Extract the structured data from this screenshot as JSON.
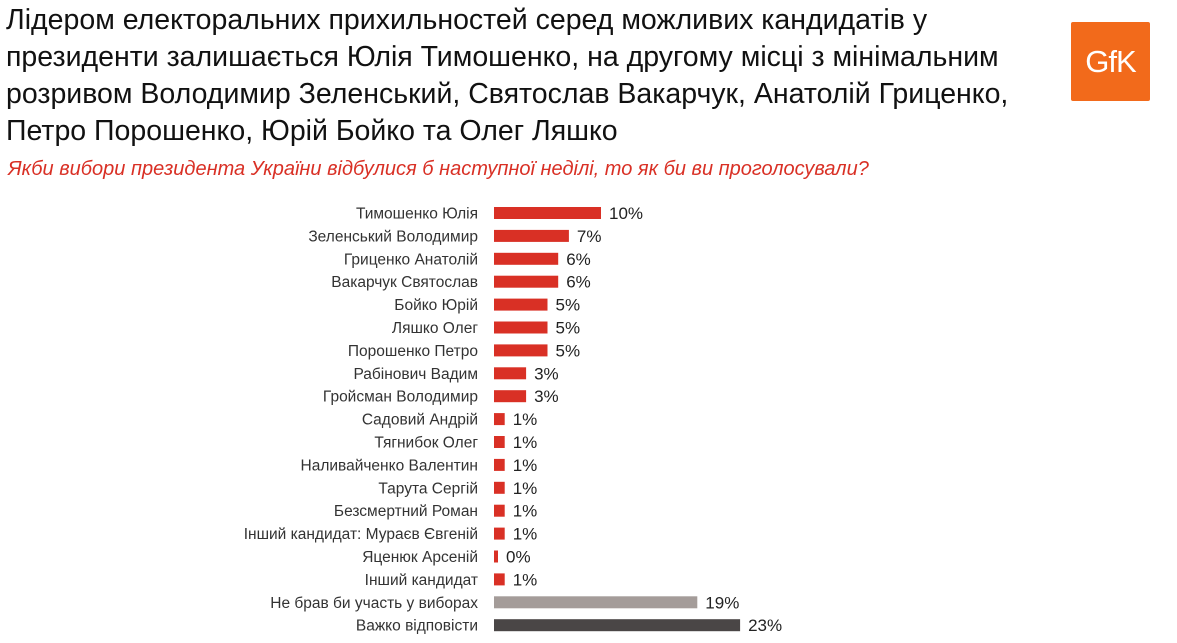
{
  "headline": "Лідером електоральних прихильностей серед можливих кандидатів у президенти залишається Юлія Тимошенко, на другому місці з мінімальним розривом Володимир Зеленський, Святослав Вакарчук, Анатолій Гриценко, Петро Порошенко, Юрій Бойко та Олег Ляшко",
  "logo_text": "GfK",
  "colors": {
    "primary": "#d93025",
    "gray": "#a49c99",
    "dark": "#4a4646",
    "logo": "#f26a1b"
  },
  "chart_data": {
    "type": "bar",
    "orientation": "horizontal",
    "title": "Якби вибори президента України відбулися б наступної неділі, то як би ви проголосували?",
    "xlabel": "",
    "ylabel": "",
    "unit": "%",
    "xlim": [
      0,
      23
    ],
    "categories": [
      "Тимошенко Юлія",
      "Зеленський Володимир",
      "Гриценко Анатолій",
      "Вакарчук Святослав",
      "Бойко Юрій",
      "Ляшко Олег",
      "Порошенко Петро",
      "Рабінович Вадим",
      "Гройсман Володимир",
      "Садовий Андрій",
      "Тягнибок Олег",
      "Наливайченко Валентин",
      "Тарута Сергій",
      "Безсмертний Роман",
      "Інший кандидат: Мураєв Євгеній",
      "Яценюк Арсеній",
      "Інший кандидат",
      "Не брав би участь у виборах",
      "Важко відповісти"
    ],
    "values": [
      10,
      7,
      6,
      6,
      5,
      5,
      5,
      3,
      3,
      1,
      1,
      1,
      1,
      1,
      1,
      0,
      1,
      19,
      23
    ],
    "value_labels": [
      "10%",
      "7%",
      "6%",
      "6%",
      "5%",
      "5%",
      "5%",
      "3%",
      "3%",
      "1%",
      "1%",
      "1%",
      "1%",
      "1%",
      "1%",
      "0%",
      "1%",
      "19%",
      "23%"
    ],
    "bar_colors": [
      "#d93025",
      "#d93025",
      "#d93025",
      "#d93025",
      "#d93025",
      "#d93025",
      "#d93025",
      "#d93025",
      "#d93025",
      "#d93025",
      "#d93025",
      "#d93025",
      "#d93025",
      "#d93025",
      "#d93025",
      "#d93025",
      "#d93025",
      "#a49c99",
      "#4a4646"
    ]
  }
}
